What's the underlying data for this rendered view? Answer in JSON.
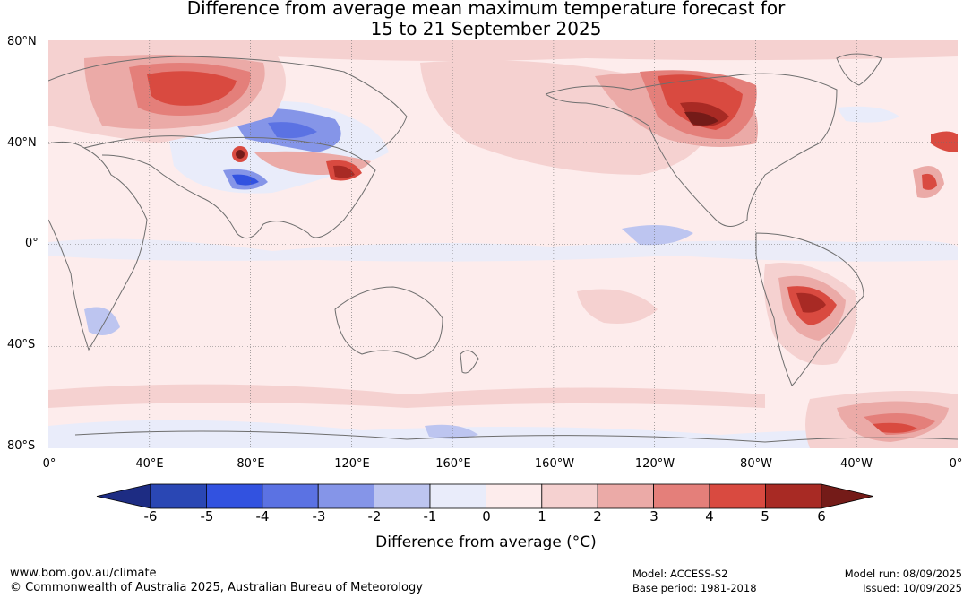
{
  "title": {
    "line1": "Difference from average mean maximum temperature forecast for",
    "line2": "15 to 21 September 2025"
  },
  "map": {
    "y_labels": [
      "80°N",
      "40°N",
      "0°",
      "40°S",
      "80°S"
    ],
    "x_labels": [
      "0°",
      "40°E",
      "80°E",
      "120°E",
      "160°E",
      "160°W",
      "120°W",
      "80°W",
      "40°W",
      "0°"
    ]
  },
  "colorbar": {
    "ticks": [
      "-6",
      "-5",
      "-4",
      "-3",
      "-2",
      "-1",
      "0",
      "1",
      "2",
      "3",
      "4",
      "5",
      "6"
    ],
    "colors": [
      "#1d2c83",
      "#2a47b4",
      "#3252e0",
      "#5b72e3",
      "#8595e8",
      "#bdc5f0",
      "#e9ecfa",
      "#fdecec",
      "#f5d1d0",
      "#ebaaa7",
      "#e47f7a",
      "#d94a40",
      "#a82a24",
      "#741b18"
    ],
    "label": "Difference from average (°C)"
  },
  "footer": {
    "url": "www.bom.gov.au/climate",
    "copyright": "© Commonwealth of Australia 2025, Australian Bureau of Meteorology",
    "model": "Model: ACCESS-S2",
    "base_period": "Base period: 1981-2018",
    "model_run": "Model run: 08/09/2025",
    "issued": "Issued: 10/09/2025"
  }
}
